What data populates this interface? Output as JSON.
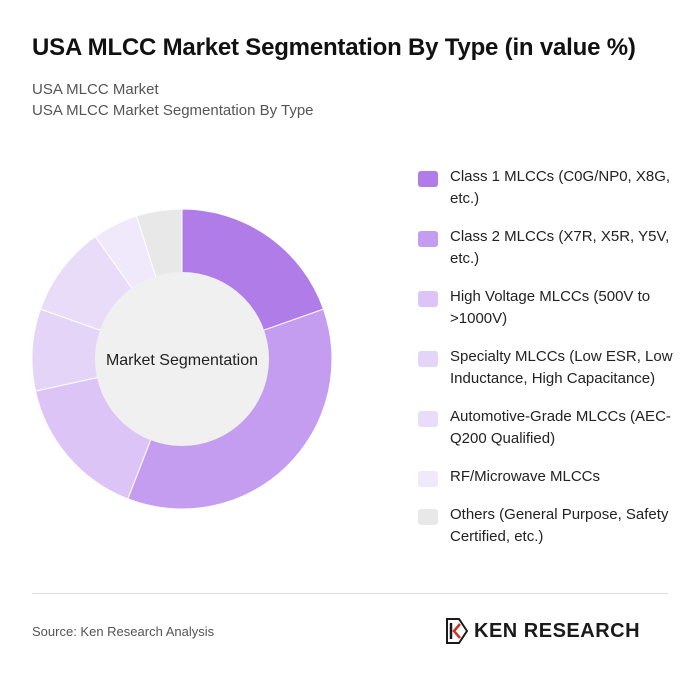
{
  "header": {
    "title": "USA MLCC Market Segmentation By Type (in value %)",
    "subtitle_line1": "USA MLCC Market",
    "subtitle_line2": "USA MLCC Market Segmentation By Type"
  },
  "chart_data": {
    "type": "pie",
    "variant": "donut",
    "center_label": "Market Segmentation",
    "legend_position": "right",
    "categories": [
      "Class 1 MLCCs (C0G/NP0, X8G, etc.)",
      "Class 2 MLCCs (X7R, X5R, Y5V, etc.)",
      "High Voltage MLCCs (500V to >1000V)",
      "Specialty MLCCs (Low ESR, Low Inductance, High Capacitance)",
      "Automotive-Grade MLCCs (AEC-Q200 Qualified)",
      "RF/Microwave MLCCs",
      "Others (General Purpose, Safety Certified, etc.)"
    ],
    "values": [
      20,
      37,
      16,
      9,
      10,
      5,
      5
    ],
    "colors": [
      "#b07ce8",
      "#c49cf0",
      "#dcc4f7",
      "#e4d4f8",
      "#e8dcf9",
      "#f0e8fb",
      "#e8e8e8"
    ]
  },
  "footer": {
    "source": "Source: Ken Research Analysis",
    "brand": "KEN RESEARCH",
    "logo_icon": "ken-research-logo-icon"
  }
}
